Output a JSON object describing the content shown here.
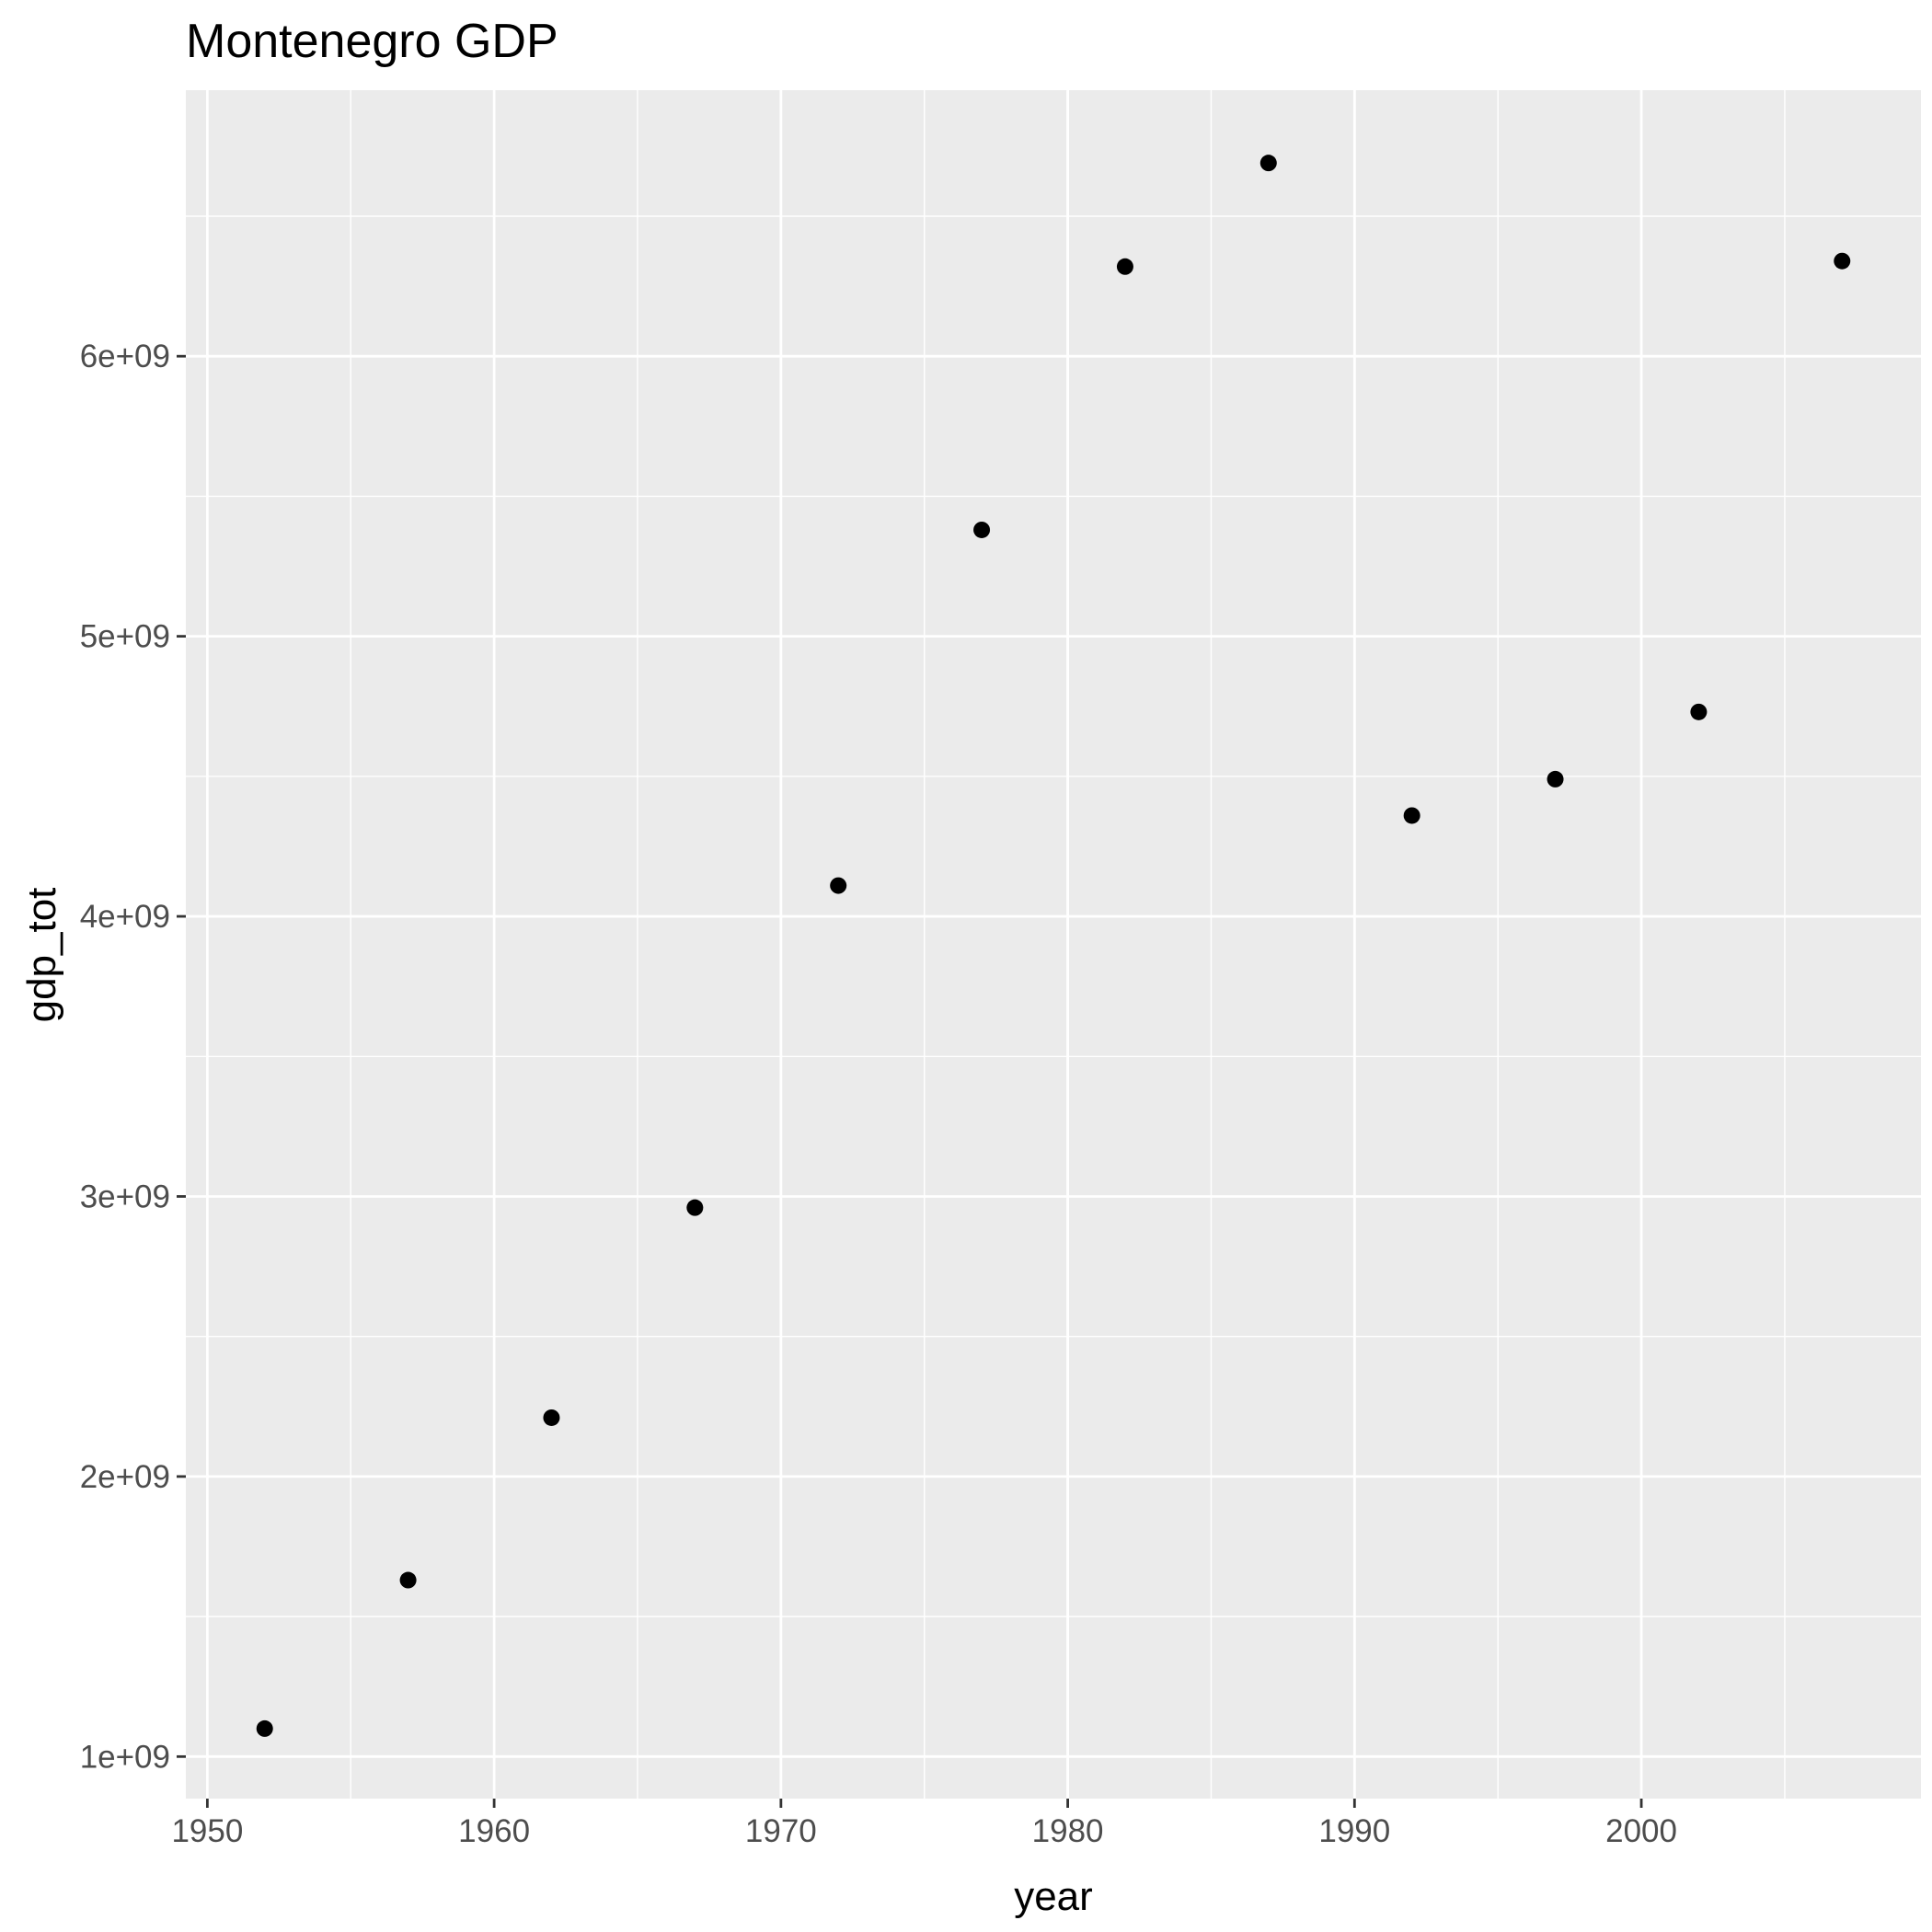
{
  "colors": {
    "panel_background": "#ebebeb",
    "grid_line": "#ffffff",
    "point": "#000000",
    "tick": "#333333",
    "tick_label": "#4d4d4d",
    "text": "#000000"
  },
  "chart_data": {
    "type": "scatter",
    "title": "Montenegro GDP",
    "xlabel": "year",
    "ylabel": "gdp_tot",
    "xlim": [
      1949.25,
      2009.75
    ],
    "ylim": [
      850000000,
      6950000000
    ],
    "x_ticks": [
      1950,
      1960,
      1970,
      1980,
      1990,
      2000
    ],
    "x_tick_labels": [
      "1950",
      "1960",
      "1970",
      "1980",
      "1990",
      "2000"
    ],
    "x_minor_ticks": [
      1955,
      1965,
      1975,
      1985,
      1995,
      2005
    ],
    "y_ticks": [
      1000000000,
      2000000000,
      3000000000,
      4000000000,
      5000000000,
      6000000000
    ],
    "y_tick_labels": [
      "1e+09",
      "2e+09",
      "3e+09",
      "4e+09",
      "5e+09",
      "6e+09"
    ],
    "y_minor_ticks": [
      1500000000,
      2500000000,
      3500000000,
      4500000000,
      5500000000,
      6500000000
    ],
    "grid": true,
    "legend": "none",
    "x": [
      1952,
      1957,
      1962,
      1967,
      1972,
      1977,
      1982,
      1987,
      1992,
      1997,
      2002,
      2007
    ],
    "y": [
      1100000000,
      1630000000,
      2210000000,
      2960000000,
      4110000000,
      5380000000,
      6320000000,
      6690000000,
      4360000000,
      4490000000,
      4730000000,
      6340000000
    ]
  }
}
